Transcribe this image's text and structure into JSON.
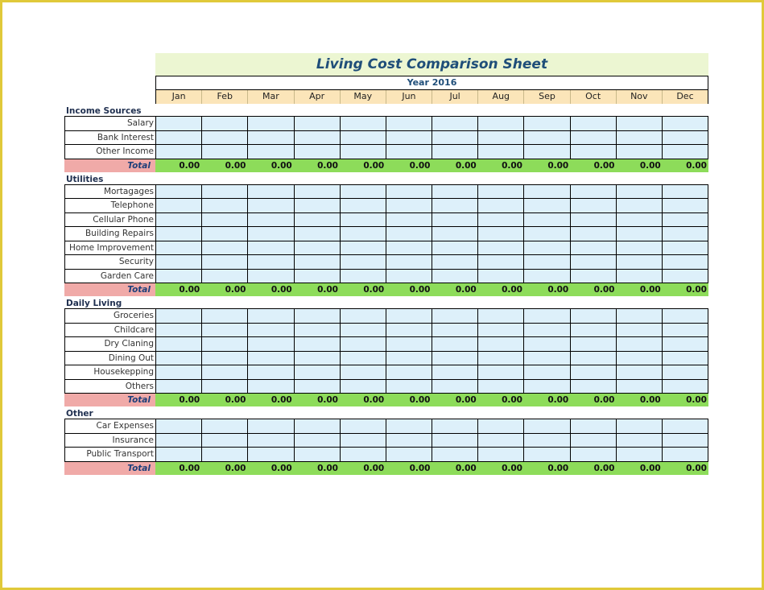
{
  "title": "Living Cost Comparison Sheet",
  "year_label": "Year 2016",
  "months": [
    "Jan",
    "Feb",
    "Mar",
    "Apr",
    "May",
    "Jun",
    "Jul",
    "Aug",
    "Sep",
    "Oct",
    "Nov",
    "Dec"
  ],
  "total_label": "Total",
  "total_values": [
    "0.00",
    "0.00",
    "0.00",
    "0.00",
    "0.00",
    "0.00",
    "0.00",
    "0.00",
    "0.00",
    "0.00",
    "0.00",
    "0.00"
  ],
  "sections": [
    {
      "title": "Income Sources",
      "rows": [
        "Salary",
        "Bank Interest",
        "Other Income"
      ]
    },
    {
      "title": "Utilities",
      "rows": [
        "Mortagages",
        "Telephone",
        "Cellular Phone",
        "Building Repairs",
        "Home Improvement",
        "Security",
        "Garden Care"
      ]
    },
    {
      "title": "Daily Living",
      "rows": [
        "Groceries",
        "Childcare",
        "Dry Claning",
        "Dining Out",
        "Housekepping",
        "Others"
      ]
    },
    {
      "title": "Other",
      "rows": [
        "Car Expenses",
        "Insurance",
        "Public Transport"
      ]
    }
  ]
}
